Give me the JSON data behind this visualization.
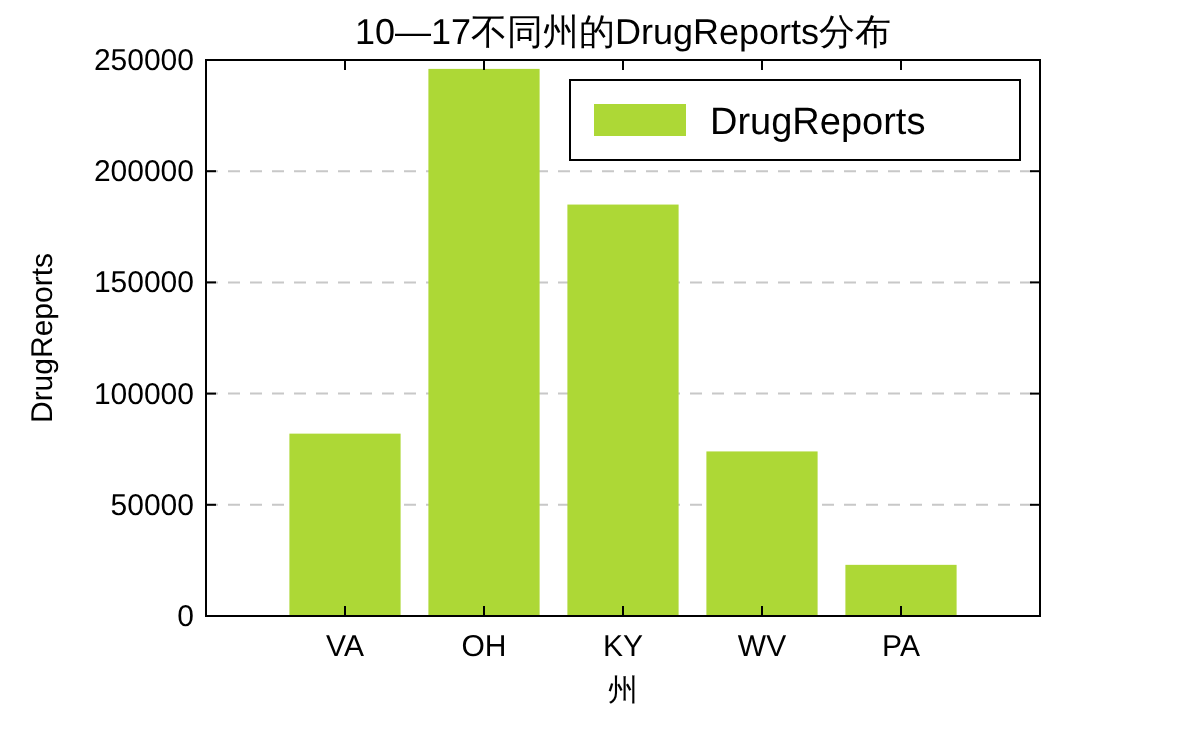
{
  "chart_data": {
    "type": "bar",
    "title": "10—17不同州的DrugReports分布",
    "xlabel": "州",
    "ylabel": "DrugReports",
    "categories": [
      "VA",
      "OH",
      "KY",
      "WV",
      "PA"
    ],
    "series": [
      {
        "name": "DrugReports",
        "color": "#add836",
        "values": [
          82000,
          246000,
          185000,
          74000,
          23000
        ]
      }
    ],
    "ylim": [
      0,
      250000
    ],
    "yticks": [
      0,
      50000,
      100000,
      150000,
      200000,
      250000
    ],
    "grid": "y",
    "legend": "top right"
  }
}
